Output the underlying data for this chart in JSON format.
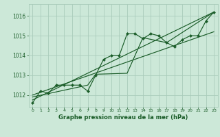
{
  "bg_color": "#cce8d8",
  "plot_bg_color": "#cce8d8",
  "grid_color": "#aaccbb",
  "line_color": "#1a5c28",
  "title": "Graphe pression niveau de la mer (hPa)",
  "title_color": "#1a5c28",
  "xlim": [
    -0.5,
    23.5
  ],
  "ylim": [
    1011.4,
    1016.6
  ],
  "yticks": [
    1012,
    1013,
    1014,
    1015,
    1016
  ],
  "xticks": [
    0,
    1,
    2,
    3,
    4,
    5,
    6,
    7,
    8,
    9,
    10,
    11,
    12,
    13,
    14,
    15,
    16,
    17,
    18,
    19,
    20,
    21,
    22,
    23
  ],
  "x": [
    0,
    1,
    2,
    3,
    4,
    5,
    6,
    7,
    8,
    9,
    10,
    11,
    12,
    13,
    14,
    15,
    16,
    17,
    18,
    19,
    20,
    21,
    22,
    23
  ],
  "y_main": [
    1011.6,
    1012.2,
    1012.1,
    1012.5,
    1012.5,
    1012.5,
    1012.5,
    1012.2,
    1013.0,
    1013.8,
    1014.0,
    1014.0,
    1015.1,
    1015.1,
    1014.85,
    1015.1,
    1015.0,
    1014.65,
    1014.45,
    1014.8,
    1015.0,
    1015.0,
    1015.75,
    1016.2
  ],
  "trend1_x": [
    0,
    23
  ],
  "trend1_y": [
    1011.75,
    1016.2
  ],
  "trend2_x": [
    0,
    7,
    8,
    12,
    14,
    17,
    23
  ],
  "trend2_y": [
    1011.9,
    1012.5,
    1013.05,
    1013.1,
    1014.9,
    1014.65,
    1016.2
  ],
  "trend3_x": [
    0,
    23
  ],
  "trend3_y": [
    1012.0,
    1015.2
  ]
}
